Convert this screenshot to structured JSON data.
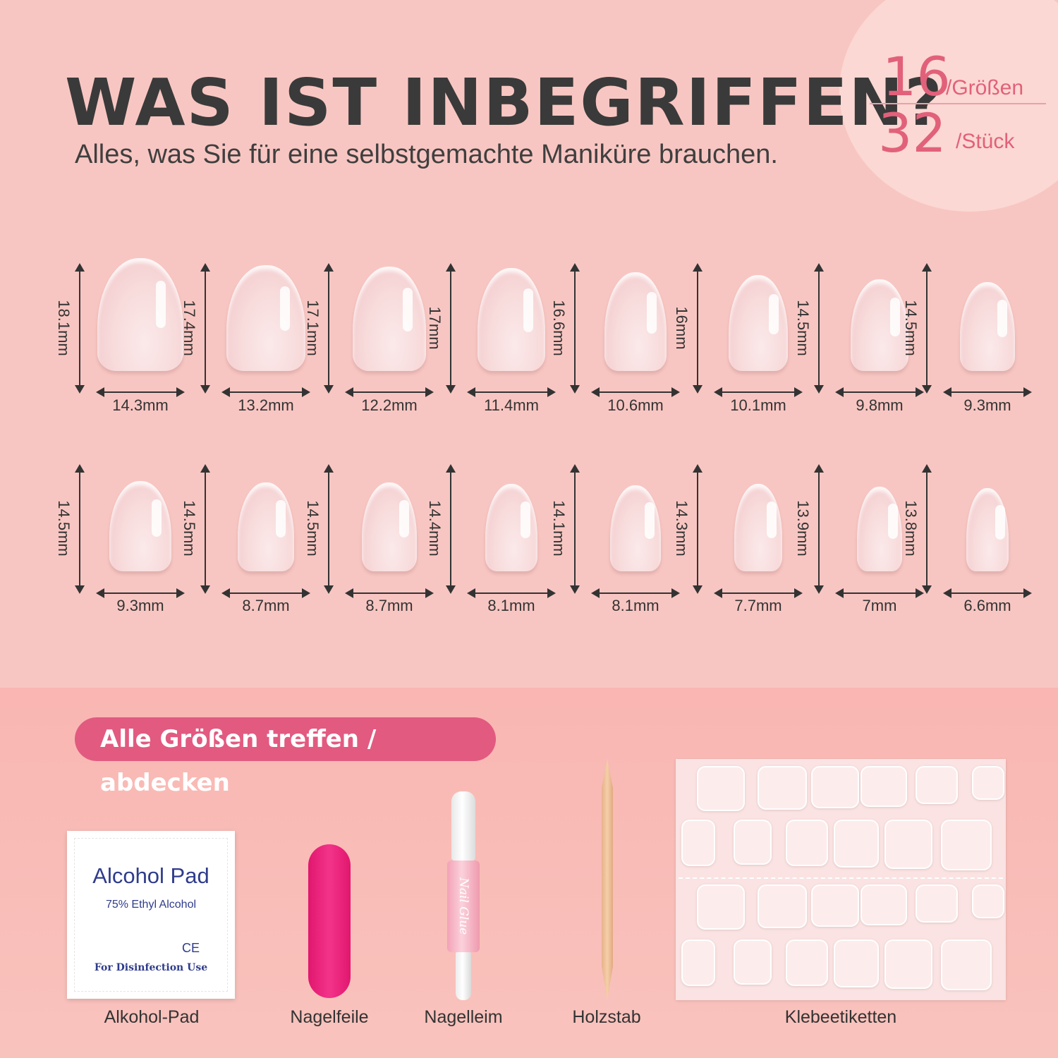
{
  "header": {
    "title": "WAS IST INBEGRIFFEN?",
    "subtitle": "Alles, was Sie für eine selbstgemachte Maniküre brauchen."
  },
  "counter": {
    "sizes_number": "16",
    "sizes_unit": "/Größen",
    "pieces_number": "32",
    "pieces_unit": "/Stück"
  },
  "nails_row1": [
    {
      "height": "18.1mm",
      "width": "14.3mm"
    },
    {
      "height": "17.4mm",
      "width": "13.2mm"
    },
    {
      "height": "17.1mm",
      "width": "12.2mm"
    },
    {
      "height": "17mm",
      "width": "11.4mm"
    },
    {
      "height": "16.6mm",
      "width": "10.6mm"
    },
    {
      "height": "16mm",
      "width": "10.1mm"
    },
    {
      "height": "14.5mm",
      "width": "9.8mm"
    },
    {
      "height": "14.5mm",
      "width": "9.3mm"
    }
  ],
  "nails_row2": [
    {
      "height": "14.5mm",
      "width": "9.3mm"
    },
    {
      "height": "14.5mm",
      "width": "8.7mm"
    },
    {
      "height": "14.5mm",
      "width": "8.7mm"
    },
    {
      "height": "14.4mm",
      "width": "8.1mm"
    },
    {
      "height": "14.1mm",
      "width": "8.1mm"
    },
    {
      "height": "14.3mm",
      "width": "7.7mm"
    },
    {
      "height": "13.9mm",
      "width": "7mm"
    },
    {
      "height": "13.8mm",
      "width": "6.6mm"
    }
  ],
  "badge": "Alle Größen treffen / abdecken",
  "alcohol_pad": {
    "title": "Alcohol Pad",
    "sub": "75% Ethyl Alcohol",
    "ce": "CE",
    "use": "For Disinfection Use"
  },
  "glue_label": "Nail Glue",
  "tools": {
    "pad": "Alkohol-Pad",
    "file": "Nagelfeile",
    "glue": "Nagelleim",
    "stick": "Holzstab",
    "stickers": "Klebeetiketten"
  },
  "colors": {
    "accent": "#e2617a",
    "badge": "#e25a80",
    "background": "#f8c6c2"
  }
}
